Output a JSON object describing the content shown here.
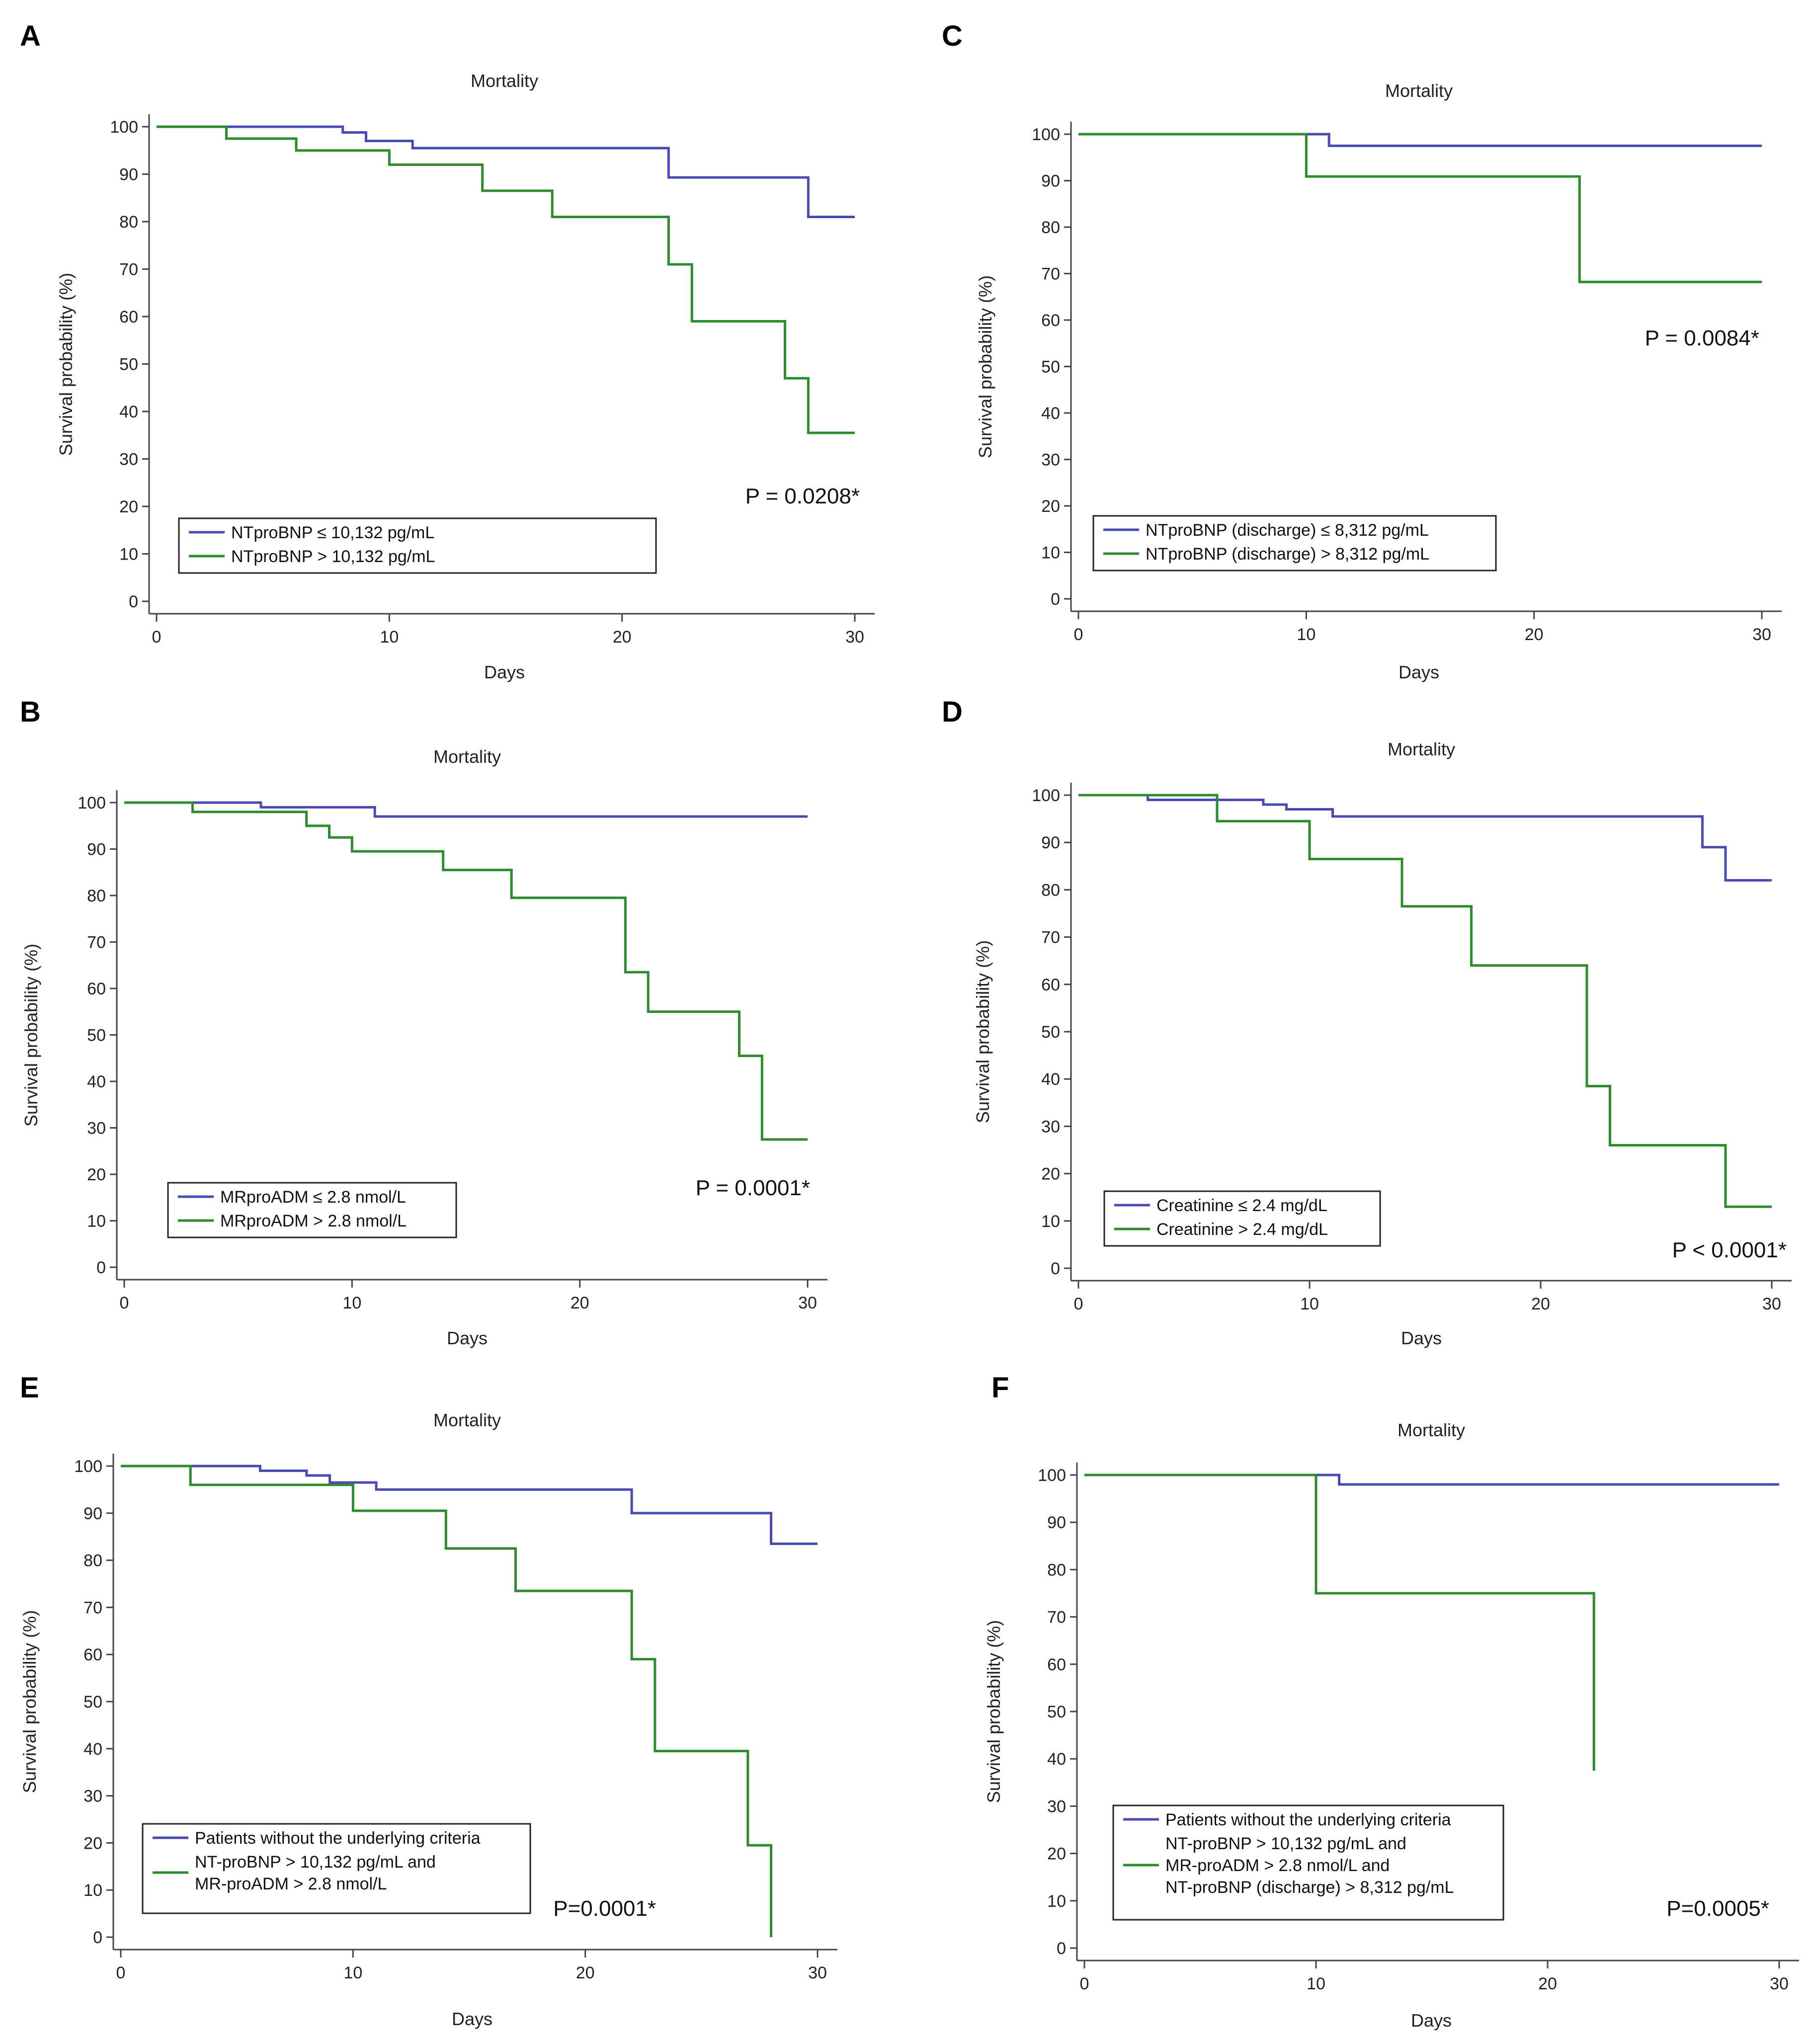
{
  "colors": {
    "series1": "#4a4ab4",
    "series2": "#2e8b2e",
    "axis": "#444444",
    "text": "#222222"
  },
  "chart_data": [
    {
      "panel": "A",
      "type": "line",
      "title": "Mortality",
      "xlabel": "Days",
      "ylabel": "Survival probability (%)",
      "xlim": [
        0,
        30
      ],
      "ylim": [
        0,
        100
      ],
      "xticks": [
        0,
        10,
        20,
        30
      ],
      "yticks": [
        0,
        10,
        20,
        30,
        40,
        50,
        60,
        70,
        80,
        90,
        100
      ],
      "pvalue": "P = 0.0208*",
      "series": [
        {
          "name": "NTproBNP ≤ 10,132 pg/mL",
          "color": "#4a4ab4",
          "x": [
            0,
            8,
            9,
            11,
            22,
            28,
            30
          ],
          "y": [
            100,
            98.8,
            97,
            95.5,
            89.3,
            81,
            81
          ]
        },
        {
          "name": "NTproBNP > 10,132 pg/mL",
          "color": "#2e8b2e",
          "x": [
            0,
            3,
            6,
            10,
            14,
            17,
            22,
            23,
            27,
            28,
            30
          ],
          "y": [
            100,
            97.5,
            95,
            92,
            86.5,
            81,
            71,
            59,
            47,
            35.5,
            35.5
          ]
        }
      ]
    },
    {
      "panel": "C",
      "type": "line",
      "title": "Mortality",
      "xlabel": "Days",
      "ylabel": "Survival probability (%)",
      "xlim": [
        0,
        30
      ],
      "ylim": [
        0,
        100
      ],
      "xticks": [
        0,
        10,
        20,
        30
      ],
      "yticks": [
        0,
        10,
        20,
        30,
        40,
        50,
        60,
        70,
        80,
        90,
        100
      ],
      "pvalue": "P = 0.0084*",
      "series": [
        {
          "name": "NTproBNP (discharge) ≤ 8,312 pg/mL",
          "color": "#4a4ab4",
          "x": [
            0,
            11,
            30
          ],
          "y": [
            100,
            97.5,
            97.5
          ]
        },
        {
          "name": "NTproBNP (discharge) > 8,312 pg/mL",
          "color": "#2e8b2e",
          "x": [
            0,
            10,
            22,
            30
          ],
          "y": [
            100,
            90.9,
            68.2,
            68.2
          ]
        }
      ]
    },
    {
      "panel": "B",
      "type": "line",
      "title": "Mortality",
      "xlabel": "Days",
      "ylabel": "Survival probability (%)",
      "xlim": [
        0,
        30
      ],
      "ylim": [
        0,
        100
      ],
      "xticks": [
        0,
        10,
        20,
        30
      ],
      "yticks": [
        0,
        10,
        20,
        30,
        40,
        50,
        60,
        70,
        80,
        90,
        100
      ],
      "pvalue": "P = 0.0001*",
      "series": [
        {
          "name": "MRproADM ≤ 2.8 nmol/L",
          "color": "#4a4ab4",
          "x": [
            0,
            6,
            11,
            30
          ],
          "y": [
            100,
            99,
            97,
            97
          ]
        },
        {
          "name": "MRproADM > 2.8 nmol/L",
          "color": "#2e8b2e",
          "x": [
            0,
            3,
            8,
            9,
            10,
            14,
            17,
            22,
            23,
            27,
            28,
            30
          ],
          "y": [
            100,
            98,
            95,
            92.5,
            89.5,
            85.5,
            79.5,
            63.5,
            55,
            45.5,
            27.5,
            27.5
          ]
        }
      ]
    },
    {
      "panel": "D",
      "type": "line",
      "title": "Mortality",
      "xlabel": "Days",
      "ylabel": "Survival probability (%)",
      "xlim": [
        0,
        30
      ],
      "ylim": [
        0,
        100
      ],
      "xticks": [
        0,
        10,
        20,
        30
      ],
      "yticks": [
        0,
        10,
        20,
        30,
        40,
        50,
        60,
        70,
        80,
        90,
        100
      ],
      "pvalue": "P < 0.0001*",
      "series": [
        {
          "name": "Creatinine ≤ 2.4 mg/dL",
          "color": "#4a4ab4",
          "x": [
            0,
            3,
            6,
            8,
            9,
            11,
            27,
            28,
            30
          ],
          "y": [
            100,
            99,
            99,
            98,
            97,
            95.5,
            89,
            82,
            82
          ]
        },
        {
          "name": "Creatinine > 2.4 mg/dL",
          "color": "#2e8b2e",
          "x": [
            0,
            6,
            10,
            14,
            17,
            22,
            23,
            28,
            30
          ],
          "y": [
            100,
            94.5,
            86.5,
            76.5,
            64,
            38.5,
            26,
            13,
            13
          ]
        }
      ]
    },
    {
      "panel": "E",
      "type": "line",
      "title": "Mortality",
      "xlabel": "Days",
      "ylabel": "Survival probability (%)",
      "xlim": [
        0,
        30
      ],
      "ylim": [
        0,
        100
      ],
      "xticks": [
        0,
        10,
        20,
        30
      ],
      "yticks": [
        0,
        10,
        20,
        30,
        40,
        50,
        60,
        70,
        80,
        90,
        100
      ],
      "pvalue": "P=0.0001*",
      "series": [
        {
          "name": "Patients without the underlying criteria",
          "color": "#4a4ab4",
          "x": [
            0,
            6,
            8,
            9,
            11,
            22,
            28,
            30
          ],
          "y": [
            100,
            99,
            98,
            96.5,
            95,
            90,
            83.5,
            83.5
          ]
        },
        {
          "name": "NT-proBNP > 10,132 pg/mL and\nMR-proADM > 2.8 nmol/L",
          "color": "#2e8b2e",
          "x": [
            0,
            3,
            10,
            14,
            17,
            22,
            23,
            27,
            28
          ],
          "y": [
            100,
            96,
            90.5,
            82.5,
            73.5,
            59,
            39.5,
            19.5,
            0
          ]
        }
      ]
    },
    {
      "panel": "F",
      "type": "line",
      "title": "Mortality",
      "xlabel": "Days",
      "ylabel": "Survival probability (%)",
      "xlim": [
        0,
        30
      ],
      "ylim": [
        0,
        100
      ],
      "xticks": [
        0,
        10,
        20,
        30
      ],
      "yticks": [
        0,
        10,
        20,
        30,
        40,
        50,
        60,
        70,
        80,
        90,
        100
      ],
      "pvalue": "P=0.0005*",
      "series": [
        {
          "name": "Patients without the underlying criteria",
          "color": "#4a4ab4",
          "x": [
            0,
            11,
            30
          ],
          "y": [
            100,
            98,
            98
          ]
        },
        {
          "name": "NT-proBNP > 10,132 pg/mL and\nMR-proADM > 2.8 nmol/L and\nNT-proBNP (discharge) > 8,312 pg/mL",
          "color": "#2e8b2e",
          "x": [
            0,
            10,
            22
          ],
          "y": [
            100,
            75,
            37.5
          ]
        }
      ]
    }
  ]
}
